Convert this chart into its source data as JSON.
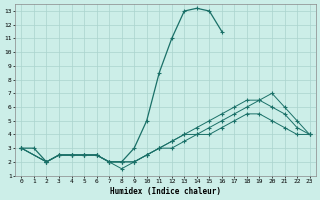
{
  "xlabel": "Humidex (Indice chaleur)",
  "xlim": [
    -0.5,
    23.5
  ],
  "ylim": [
    1,
    13.5
  ],
  "xticks": [
    0,
    1,
    2,
    3,
    4,
    5,
    6,
    7,
    8,
    9,
    10,
    11,
    12,
    13,
    14,
    15,
    16,
    17,
    18,
    19,
    20,
    21,
    22,
    23
  ],
  "yticks": [
    1,
    2,
    3,
    4,
    5,
    6,
    7,
    8,
    9,
    10,
    11,
    12,
    13
  ],
  "background_color": "#cceee8",
  "grid_color": "#aad4ce",
  "line_color": "#1a7068",
  "lines": [
    {
      "x": [
        0,
        1,
        2,
        3,
        4,
        5,
        6,
        7,
        8,
        9,
        10,
        11,
        12,
        13,
        14,
        15,
        16
      ],
      "y": [
        3,
        3,
        2,
        2.5,
        2.5,
        2.5,
        2.5,
        2,
        2,
        3,
        5,
        8.5,
        11,
        13,
        13.2,
        13,
        11.5
      ],
      "style": "solid",
      "marker": true
    },
    {
      "x": [
        0,
        2,
        3,
        4,
        5,
        6,
        7,
        8,
        9,
        10,
        11,
        12,
        13,
        14,
        15,
        16,
        17,
        18,
        19,
        20,
        21,
        22,
        23
      ],
      "y": [
        3,
        2,
        2.5,
        2.5,
        2.5,
        2.5,
        2,
        2,
        2,
        2.5,
        3,
        3.5,
        4,
        4,
        4.5,
        5,
        5.5,
        6,
        6.5,
        7,
        6,
        5,
        4
      ],
      "style": "solid",
      "marker": true
    },
    {
      "x": [
        0,
        2,
        3,
        4,
        5,
        6,
        7,
        8,
        9,
        10,
        11,
        12,
        13,
        14,
        15,
        16,
        17,
        18,
        19,
        20,
        21,
        22,
        23
      ],
      "y": [
        3,
        2,
        2.5,
        2.5,
        2.5,
        2.5,
        2,
        2,
        2,
        2.5,
        3,
        3.5,
        4,
        4.5,
        5,
        5.5,
        6,
        6.5,
        6.5,
        6,
        5.5,
        4.5,
        4
      ],
      "style": "solid",
      "marker": true
    },
    {
      "x": [
        0,
        2,
        3,
        4,
        5,
        6,
        7,
        8,
        9,
        10,
        11,
        12,
        13,
        14,
        15,
        16,
        17,
        18,
        19,
        20,
        21,
        22,
        23
      ],
      "y": [
        3,
        2,
        2.5,
        2.5,
        2.5,
        2.5,
        2,
        1.5,
        2,
        2.5,
        3,
        3,
        3.5,
        4,
        4,
        4.5,
        5,
        5.5,
        5.5,
        5,
        4.5,
        4,
        4
      ],
      "style": "solid",
      "marker": true
    }
  ]
}
